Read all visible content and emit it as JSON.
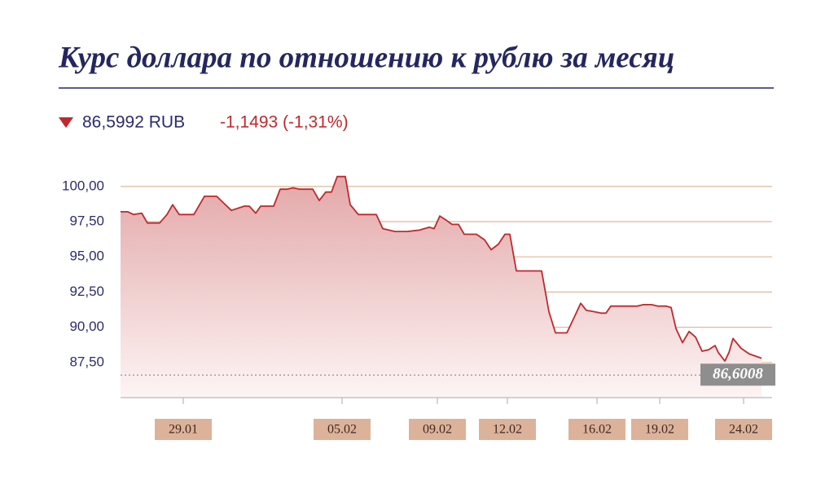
{
  "chart_data": {
    "type": "line",
    "title": "Курс доллара по отношению к рублю за месяц",
    "price": "86,5992 RUB",
    "change": "-1,1493 (-1,31%)",
    "x": [
      0,
      0.9,
      1.6,
      2.6,
      3.3,
      4.8,
      5.7,
      6.4,
      7.2,
      9.0,
      10.3,
      11.8,
      13.6,
      15.2,
      15.8,
      16.6,
      17.2,
      18.8,
      19.6,
      20.4,
      21.2,
      22.0,
      23.6,
      24.4,
      25.2,
      25.9,
      26.6,
      27.6,
      28.2,
      29.2,
      31.4,
      32.2,
      33.7,
      35.2,
      36.7,
      37.9,
      38.5,
      39.2,
      40.0,
      40.7,
      41.5,
      42.2,
      43.7,
      44.7,
      45.5,
      46.4,
      47.2,
      47.8,
      48.6,
      51.7,
      52.6,
      53.4,
      54.8,
      55.7,
      56.5,
      57.2,
      58.2,
      59.0,
      59.6,
      60.2,
      62.7,
      63.4,
      64.2,
      65.2,
      66.0,
      67.0,
      67.6,
      68.2,
      69.0,
      69.8,
      70.6,
      71.4,
      72.2,
      73.0,
      73.4,
      74.2,
      74.7,
      75.2,
      76.2,
      77.2,
      78.7
    ],
    "series": [
      {
        "color": "#c0282d",
        "values": [
          98.2,
          98.2,
          98.0,
          98.1,
          97.4,
          97.4,
          98.0,
          98.7,
          98.0,
          98.0,
          99.3,
          99.3,
          98.3,
          98.6,
          98.6,
          98.1,
          98.6,
          98.6,
          99.8,
          99.8,
          99.9,
          99.8,
          99.8,
          99.0,
          99.6,
          99.6,
          100.7,
          100.7,
          98.7,
          98.0,
          98.0,
          97.0,
          96.8,
          96.8,
          96.9,
          97.1,
          97.0,
          97.9,
          97.6,
          97.3,
          97.3,
          96.6,
          96.6,
          96.2,
          95.5,
          95.9,
          96.6,
          96.6,
          94.0,
          94.0,
          91.1,
          89.6,
          89.6,
          90.7,
          91.7,
          91.2,
          91.1,
          91.0,
          91.0,
          91.5,
          91.5,
          91.5,
          91.6,
          91.6,
          91.5,
          91.5,
          91.4,
          89.9,
          88.9,
          89.7,
          89.3,
          88.3,
          88.4,
          88.7,
          88.2,
          87.6,
          88.2,
          89.2,
          88.5,
          88.1,
          87.8
        ]
      }
    ],
    "xlim": [
      0,
      80
    ],
    "xticks": [
      {
        "value": 7.7,
        "label": "29.01"
      },
      {
        "value": 27.2,
        "label": "05.02"
      },
      {
        "value": 38.9,
        "label": "09.02"
      },
      {
        "value": 47.5,
        "label": "12.02"
      },
      {
        "value": 58.5,
        "label": "16.02"
      },
      {
        "value": 66.2,
        "label": "19.02"
      },
      {
        "value": 76.5,
        "label": "24.02"
      }
    ],
    "ylim": [
      85,
      101
    ],
    "yticks": [
      {
        "value": 100,
        "label": "100,00"
      },
      {
        "value": 97.5,
        "label": "97,50"
      },
      {
        "value": 95,
        "label": "95,00"
      },
      {
        "value": 92.5,
        "label": "92,50"
      },
      {
        "value": 90,
        "label": "90,00"
      },
      {
        "value": 87.5,
        "label": "87,50"
      }
    ],
    "reference_line": {
      "value": 86.6008,
      "label": "86,6008"
    },
    "grid": true
  }
}
